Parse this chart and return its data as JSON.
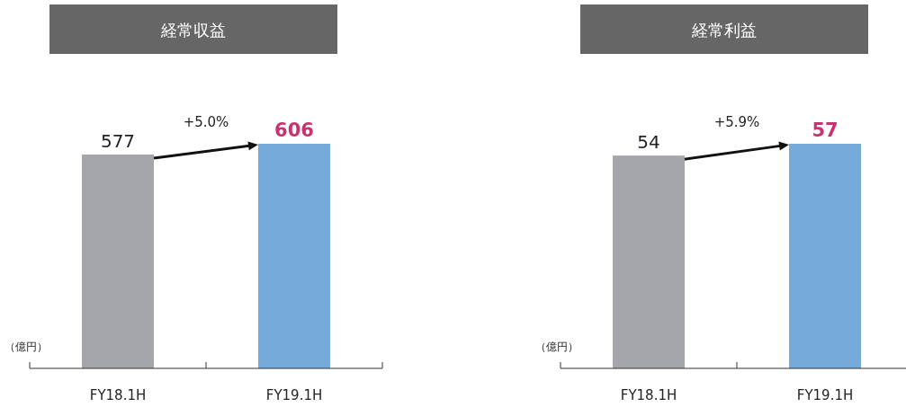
{
  "chart_data": [
    {
      "type": "bar",
      "title": "経常収益",
      "ylabel": "（億円）",
      "categories": [
        "FY18.1H",
        "FY19.1H"
      ],
      "values": [
        577,
        606
      ],
      "colors": [
        "#a5a6a9",
        "#75aadb"
      ],
      "data_labels": true,
      "annotations": [
        "+5.0%"
      ]
    },
    {
      "type": "bar",
      "title": "経常利益",
      "ylabel": "（億円）",
      "categories": [
        "FY18.1H",
        "FY19.1H"
      ],
      "values": [
        54,
        57
      ],
      "colors": [
        "#a5a6a9",
        "#75aadb"
      ],
      "data_labels": true,
      "annotations": [
        "+5.9%"
      ]
    }
  ]
}
